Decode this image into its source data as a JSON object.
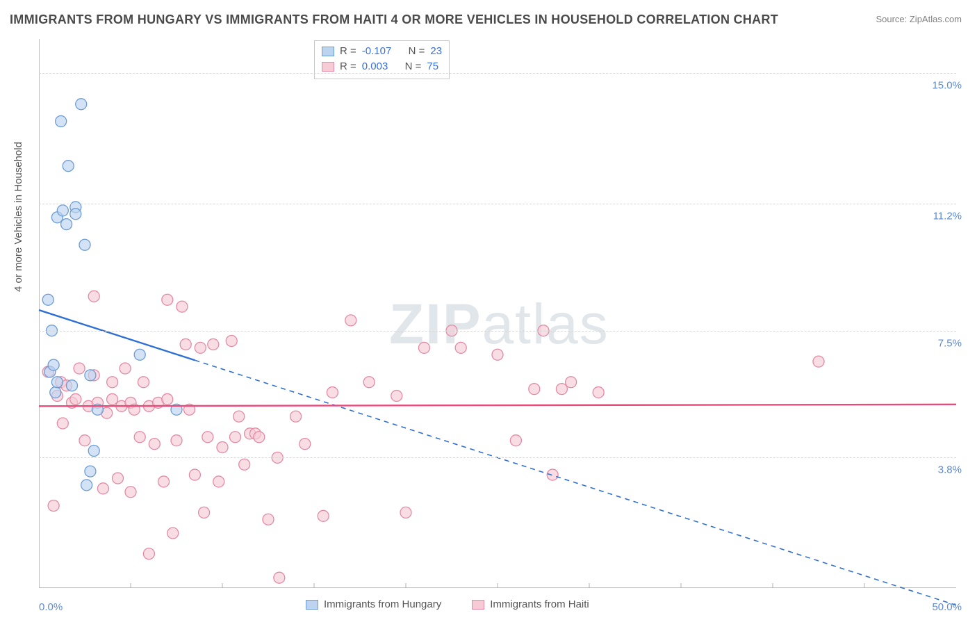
{
  "title": "IMMIGRANTS FROM HUNGARY VS IMMIGRANTS FROM HAITI 4 OR MORE VEHICLES IN HOUSEHOLD CORRELATION CHART",
  "source": "Source: ZipAtlas.com",
  "yaxis_label": "4 or more Vehicles in Household",
  "watermark_bold": "ZIP",
  "watermark_rest": "atlas",
  "chart": {
    "type": "scatter-correlation",
    "xlim": [
      0,
      50
    ],
    "ylim": [
      0,
      16
    ],
    "xtick_left": "0.0%",
    "xtick_right": "50.0%",
    "xtick_marks": [
      5,
      10,
      15,
      20,
      25,
      30,
      35,
      40,
      45
    ],
    "ygrid": [
      {
        "y": 3.8,
        "label": "3.8%"
      },
      {
        "y": 7.5,
        "label": "7.5%"
      },
      {
        "y": 11.2,
        "label": "11.2%"
      },
      {
        "y": 15.0,
        "label": "15.0%"
      }
    ],
    "background_color": "#ffffff",
    "grid_color": "#d8d8d8",
    "axis_text_color": "#5b8bd4",
    "marker_radius": 8,
    "marker_stroke_width": 1.3,
    "trend_line_width": 2.4
  },
  "series": {
    "hungary": {
      "label": "Immigrants from Hungary",
      "fill_color": "#bcd4ef",
      "stroke_color": "#6c9bd4",
      "line_color": "#2e6fd4",
      "R": "-0.107",
      "N": "23",
      "trend": {
        "x1": 0,
        "y1": 8.1,
        "x2": 50,
        "y2": -0.5,
        "solid_until_x": 8.5
      },
      "points": [
        [
          0.5,
          8.4
        ],
        [
          0.6,
          6.3
        ],
        [
          0.7,
          7.5
        ],
        [
          0.8,
          6.5
        ],
        [
          0.9,
          5.7
        ],
        [
          1.0,
          10.8
        ],
        [
          1.2,
          13.6
        ],
        [
          1.3,
          11.0
        ],
        [
          1.5,
          10.6
        ],
        [
          1.6,
          12.3
        ],
        [
          1.8,
          5.9
        ],
        [
          2.0,
          11.1
        ],
        [
          2.0,
          10.9
        ],
        [
          2.3,
          14.1
        ],
        [
          2.5,
          10.0
        ],
        [
          2.6,
          3.0
        ],
        [
          2.8,
          3.4
        ],
        [
          2.8,
          6.2
        ],
        [
          3.0,
          4.0
        ],
        [
          3.2,
          5.2
        ],
        [
          5.5,
          6.8
        ],
        [
          7.5,
          5.2
        ],
        [
          1.0,
          6.0
        ]
      ]
    },
    "haiti": {
      "label": "Immigrants from Haiti",
      "fill_color": "#f6cbd6",
      "stroke_color": "#e38aa4",
      "line_color": "#e84a79",
      "R": "0.003",
      "N": "75",
      "trend": {
        "x1": 0,
        "y1": 5.3,
        "x2": 50,
        "y2": 5.35
      },
      "points": [
        [
          0.5,
          6.3
        ],
        [
          0.8,
          2.4
        ],
        [
          1.0,
          5.6
        ],
        [
          1.2,
          6.0
        ],
        [
          1.5,
          5.9
        ],
        [
          1.8,
          5.4
        ],
        [
          2.0,
          5.5
        ],
        [
          2.2,
          6.4
        ],
        [
          2.5,
          4.3
        ],
        [
          2.7,
          5.3
        ],
        [
          3.0,
          6.2
        ],
        [
          3.0,
          8.5
        ],
        [
          3.2,
          5.4
        ],
        [
          3.5,
          2.9
        ],
        [
          3.7,
          5.1
        ],
        [
          4.0,
          6.0
        ],
        [
          4.0,
          5.5
        ],
        [
          4.3,
          3.2
        ],
        [
          4.5,
          5.3
        ],
        [
          4.7,
          6.4
        ],
        [
          5.0,
          5.4
        ],
        [
          5.0,
          2.8
        ],
        [
          5.2,
          5.2
        ],
        [
          5.5,
          4.4
        ],
        [
          5.7,
          6.0
        ],
        [
          6.0,
          5.3
        ],
        [
          6.0,
          1.0
        ],
        [
          6.3,
          4.2
        ],
        [
          6.5,
          5.4
        ],
        [
          6.8,
          3.1
        ],
        [
          7.0,
          8.4
        ],
        [
          7.0,
          5.5
        ],
        [
          7.3,
          1.6
        ],
        [
          7.5,
          4.3
        ],
        [
          7.8,
          8.2
        ],
        [
          8.0,
          7.1
        ],
        [
          8.2,
          5.2
        ],
        [
          8.5,
          3.3
        ],
        [
          8.8,
          7.0
        ],
        [
          9.0,
          2.2
        ],
        [
          9.2,
          4.4
        ],
        [
          9.5,
          7.1
        ],
        [
          9.8,
          3.1
        ],
        [
          10.0,
          4.1
        ],
        [
          10.5,
          7.2
        ],
        [
          10.7,
          4.4
        ],
        [
          10.9,
          5.0
        ],
        [
          11.2,
          3.6
        ],
        [
          11.5,
          4.5
        ],
        [
          11.8,
          4.5
        ],
        [
          12.0,
          4.4
        ],
        [
          12.5,
          2.0
        ],
        [
          13.0,
          3.8
        ],
        [
          13.1,
          0.3
        ],
        [
          14.0,
          5.0
        ],
        [
          14.5,
          4.2
        ],
        [
          15.5,
          2.1
        ],
        [
          16.0,
          5.7
        ],
        [
          17.0,
          7.8
        ],
        [
          18.0,
          6.0
        ],
        [
          19.5,
          5.6
        ],
        [
          20.0,
          2.2
        ],
        [
          21.0,
          7.0
        ],
        [
          22.5,
          7.5
        ],
        [
          23.0,
          7.0
        ],
        [
          25.0,
          6.8
        ],
        [
          26.0,
          4.3
        ],
        [
          27.0,
          5.8
        ],
        [
          27.5,
          7.5
        ],
        [
          28.0,
          3.3
        ],
        [
          28.5,
          5.8
        ],
        [
          29.0,
          6.0
        ],
        [
          30.5,
          5.7
        ],
        [
          42.5,
          6.6
        ],
        [
          1.3,
          4.8
        ]
      ]
    }
  },
  "corr_legend": {
    "R_label": "R =",
    "N_label": "N ="
  },
  "bottom_legend": {}
}
